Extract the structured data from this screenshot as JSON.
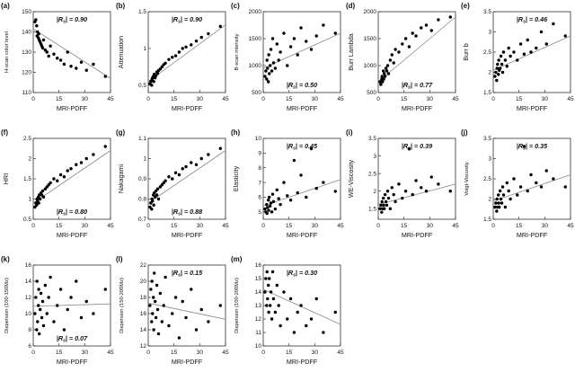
{
  "figure": {
    "xlabel_shared": "MRI-PDFF",
    "point_color": "#000000",
    "trend_color": "#8a8a8a",
    "axes_color": "#333333"
  },
  "chart_data": [
    {
      "id": "a",
      "panel_label": "(a)",
      "type": "scatter",
      "xlabel": "MRI-PDFF",
      "ylabel": "H-scan color level",
      "r_text": "|Rs| = 0.90",
      "r_value": "0.90",
      "r_pos": "top",
      "xlim": [
        0,
        45
      ],
      "xticks": [
        0,
        15,
        30,
        45
      ],
      "ylim": [
        110,
        150
      ],
      "yticks": [
        110,
        120,
        130,
        140,
        150
      ],
      "x": [
        1,
        1.5,
        2,
        2.2,
        2.5,
        3,
        3.2,
        3.5,
        4,
        4.5,
        5,
        5.5,
        6,
        7,
        8,
        9,
        10,
        12,
        14,
        16,
        18,
        20,
        22,
        25,
        28,
        31,
        35,
        42
      ],
      "y": [
        145,
        146,
        143,
        138,
        140,
        137,
        139,
        136,
        135,
        134,
        133,
        132,
        136,
        131,
        130,
        128,
        133,
        129,
        127,
        126,
        124,
        130,
        123,
        122,
        125,
        121,
        124,
        118
      ],
      "trend": {
        "x1": 0,
        "y1": 141.5,
        "x2": 45,
        "y2": 117
      }
    },
    {
      "id": "b",
      "panel_label": "(b)",
      "type": "scatter",
      "xlabel": "MRI-PDFF",
      "ylabel": "Attenuation",
      "r_text": "|Rs| = 0.90",
      "r_value": "0.90",
      "r_pos": "top",
      "xlim": [
        0,
        45
      ],
      "xticks": [
        0,
        15,
        30,
        45
      ],
      "ylim": [
        0.4,
        1.5
      ],
      "yticks": [
        0.5,
        1,
        1.5
      ],
      "x": [
        1,
        1.5,
        2,
        2.2,
        2.5,
        3,
        3.2,
        3.5,
        4,
        4.5,
        5,
        5.5,
        6,
        7,
        8,
        9,
        10,
        12,
        14,
        16,
        18,
        20,
        22,
        25,
        28,
        31,
        35,
        42
      ],
      "y": [
        0.52,
        0.55,
        0.5,
        0.58,
        0.6,
        0.62,
        0.55,
        0.65,
        0.6,
        0.63,
        0.68,
        0.66,
        0.7,
        0.72,
        0.75,
        0.78,
        0.8,
        0.85,
        0.88,
        0.9,
        0.95,
        1.0,
        1.02,
        1.05,
        1.1,
        1.15,
        1.2,
        1.3
      ],
      "trend": {
        "x1": 0,
        "y1": 0.55,
        "x2": 45,
        "y2": 1.32
      }
    },
    {
      "id": "c",
      "panel_label": "(c)",
      "type": "scatter",
      "xlabel": "MRI-PDFF",
      "ylabel": "B-scan intensity",
      "r_text": "|Rs| = 0.50",
      "r_value": "0.50",
      "r_pos": "bottom",
      "xlim": [
        0,
        45
      ],
      "xticks": [
        0,
        15,
        30,
        45
      ],
      "ylim": [
        500,
        2000
      ],
      "yticks": [
        500,
        1000,
        1500,
        2000
      ],
      "x": [
        1,
        1.5,
        2,
        2.2,
        2.5,
        3,
        3.2,
        3.5,
        4,
        4.5,
        5,
        5.5,
        6,
        7,
        8,
        9,
        10,
        12,
        14,
        16,
        18,
        20,
        22,
        25,
        28,
        31,
        35,
        42
      ],
      "y": [
        800,
        900,
        750,
        1100,
        950,
        700,
        1200,
        850,
        1000,
        1300,
        900,
        1500,
        1050,
        950,
        1400,
        1100,
        1250,
        1600,
        1000,
        1350,
        1500,
        1200,
        1700,
        1450,
        1300,
        1550,
        1750,
        1600
      ],
      "trend": {
        "x1": 0,
        "y1": 950,
        "x2": 45,
        "y2": 1600
      }
    },
    {
      "id": "d",
      "panel_label": "(d)",
      "type": "scatter",
      "xlabel": "MRI-PDFF",
      "ylabel": "Burr Lambda",
      "r_text": "|Rs| = 0.77",
      "r_value": "0.77",
      "r_pos": "bottom",
      "xlim": [
        0,
        45
      ],
      "xticks": [
        0,
        15,
        30,
        45
      ],
      "ylim": [
        500,
        2000
      ],
      "yticks": [
        500,
        1000,
        1500,
        2000
      ],
      "x": [
        1,
        1.5,
        2,
        2.2,
        2.5,
        3,
        3.2,
        3.5,
        4,
        4.5,
        5,
        5.5,
        6,
        7,
        8,
        9,
        10,
        12,
        14,
        16,
        18,
        20,
        22,
        25,
        28,
        31,
        35,
        42
      ],
      "y": [
        700,
        650,
        750,
        800,
        700,
        900,
        750,
        850,
        800,
        950,
        900,
        1000,
        850,
        1100,
        1200,
        1050,
        1300,
        1250,
        1400,
        1500,
        1350,
        1600,
        1550,
        1700,
        1750,
        1650,
        1850,
        1900
      ],
      "trend": {
        "x1": 0,
        "y1": 700,
        "x2": 45,
        "y2": 1900
      }
    },
    {
      "id": "e",
      "panel_label": "(e)",
      "type": "scatter",
      "xlabel": "MRI-PDFF",
      "ylabel": "Burr b",
      "r_text": "|Rs| = 0.46",
      "r_value": "0.46",
      "r_pos": "top",
      "xlim": [
        0,
        45
      ],
      "xticks": [
        0,
        15,
        30,
        45
      ],
      "ylim": [
        1.5,
        3.5
      ],
      "yticks": [
        1.5,
        2,
        2.5,
        3,
        3.5
      ],
      "x": [
        1,
        1.5,
        2,
        2.2,
        2.5,
        3,
        3.2,
        3.5,
        4,
        4.5,
        5,
        5.5,
        6,
        7,
        8,
        9,
        10,
        12,
        14,
        16,
        18,
        20,
        22,
        25,
        28,
        31,
        35,
        42
      ],
      "y": [
        1.9,
        2.0,
        1.8,
        2.1,
        2.2,
        1.95,
        2.3,
        2.05,
        2.1,
        2.4,
        2.2,
        2.0,
        2.5,
        2.3,
        2.15,
        2.6,
        2.4,
        2.5,
        2.3,
        2.7,
        2.45,
        2.8,
        2.5,
        2.6,
        3.0,
        2.7,
        3.2,
        2.9
      ],
      "trend": {
        "x1": 0,
        "y1": 2.05,
        "x2": 45,
        "y2": 2.9
      }
    },
    {
      "id": "f",
      "panel_label": "(f)",
      "type": "scatter",
      "xlabel": "MRI-PDFF",
      "ylabel": "HRI",
      "r_text": "|Rs| = 0.80",
      "r_value": "0.80",
      "r_pos": "bottom",
      "xlim": [
        0,
        45
      ],
      "xticks": [
        0,
        15,
        30,
        45
      ],
      "ylim": [
        0.5,
        2.5
      ],
      "yticks": [
        0.5,
        1,
        1.5,
        2,
        2.5
      ],
      "x": [
        1,
        1.5,
        2,
        2.2,
        2.5,
        3,
        3.2,
        3.5,
        4,
        4.5,
        5,
        5.5,
        6,
        7,
        8,
        9,
        10,
        12,
        14,
        16,
        18,
        20,
        22,
        25,
        28,
        31,
        35,
        42
      ],
      "y": [
        0.8,
        0.9,
        0.85,
        1.0,
        0.95,
        1.05,
        0.9,
        1.1,
        1.0,
        1.15,
        1.1,
        1.2,
        1.05,
        1.25,
        1.3,
        1.35,
        1.4,
        1.5,
        1.45,
        1.6,
        1.55,
        1.7,
        1.75,
        1.85,
        1.9,
        2.0,
        2.1,
        2.3
      ],
      "trend": {
        "x1": 0,
        "y1": 0.9,
        "x2": 45,
        "y2": 2.2
      }
    },
    {
      "id": "g",
      "panel_label": "(g)",
      "type": "scatter",
      "xlabel": "MRI-PDFF",
      "ylabel": "Nakagami",
      "r_text": "|Rs| = 0.88",
      "r_value": "0.88",
      "r_pos": "bottom",
      "xlim": [
        0,
        45
      ],
      "xticks": [
        0,
        15,
        30,
        45
      ],
      "ylim": [
        0.7,
        1.1
      ],
      "yticks": [
        0.7,
        0.8,
        0.9,
        1,
        1.1
      ],
      "x": [
        1,
        1.5,
        2,
        2.2,
        2.5,
        3,
        3.2,
        3.5,
        4,
        4.5,
        5,
        5.5,
        6,
        7,
        8,
        9,
        10,
        12,
        14,
        16,
        18,
        20,
        22,
        25,
        28,
        31,
        35,
        42
      ],
      "y": [
        0.76,
        0.78,
        0.75,
        0.8,
        0.79,
        0.82,
        0.77,
        0.83,
        0.81,
        0.84,
        0.82,
        0.85,
        0.8,
        0.86,
        0.87,
        0.88,
        0.89,
        0.91,
        0.9,
        0.93,
        0.92,
        0.95,
        0.96,
        0.98,
        0.97,
        1.0,
        1.02,
        1.05
      ],
      "trend": {
        "x1": 0,
        "y1": 0.78,
        "x2": 45,
        "y2": 1.04
      }
    },
    {
      "id": "h",
      "panel_label": "(h)",
      "type": "scatter",
      "xlabel": "MRI-PDFF",
      "ylabel": "Elasticity",
      "r_text": "|Rs| = 0.45",
      "r_value": "0.45",
      "r_pos": "top",
      "xlim": [
        0,
        45
      ],
      "xticks": [
        0,
        15,
        30,
        45
      ],
      "ylim": [
        4.5,
        10
      ],
      "yticks": [
        5,
        6,
        7,
        8,
        9,
        10
      ],
      "x": [
        1,
        1.5,
        2,
        2.2,
        2.5,
        3,
        3.2,
        3.5,
        4,
        4.5,
        5,
        5.5,
        6,
        7,
        8,
        9,
        10,
        12,
        14,
        16,
        18,
        20,
        22,
        25,
        28,
        31,
        35,
        42
      ],
      "y": [
        5.2,
        5.0,
        5.5,
        4.9,
        5.3,
        5.8,
        5.1,
        6.0,
        5.4,
        5.6,
        5.0,
        6.2,
        5.7,
        5.2,
        6.5,
        5.9,
        5.5,
        7.0,
        6.1,
        5.8,
        8.5,
        6.3,
        7.5,
        6.0,
        9.3,
        6.6,
        7.0,
        6.4
      ],
      "trend": {
        "x1": 0,
        "y1": 5.4,
        "x2": 45,
        "y2": 7.2
      }
    },
    {
      "id": "i",
      "panel_label": "(i)",
      "type": "scatter",
      "xlabel": "MRI-PDFF",
      "ylabel": "WE-Viscosity",
      "r_text": "|Rs| = 0.39",
      "r_value": "0.39",
      "r_pos": "top",
      "xlim": [
        0,
        45
      ],
      "xticks": [
        0,
        15,
        30,
        45
      ],
      "ylim": [
        1.2,
        3.5
      ],
      "yticks": [
        1.5,
        2,
        2.5,
        3,
        3.5
      ],
      "x": [
        1,
        1.5,
        2,
        2.2,
        2.5,
        3,
        3.2,
        3.5,
        4,
        4.5,
        5,
        5.5,
        6,
        7,
        8,
        9,
        10,
        12,
        14,
        16,
        18,
        20,
        22,
        25,
        28,
        31,
        35,
        42
      ],
      "y": [
        1.5,
        1.6,
        1.4,
        1.7,
        1.5,
        1.8,
        1.6,
        1.5,
        1.9,
        1.7,
        1.6,
        2.0,
        1.8,
        1.5,
        2.1,
        1.9,
        1.7,
        2.2,
        1.8,
        2.0,
        3.2,
        1.9,
        2.3,
        2.1,
        2.0,
        2.4,
        2.2,
        2.0
      ],
      "trend": {
        "x1": 0,
        "y1": 1.62,
        "x2": 45,
        "y2": 2.2
      }
    },
    {
      "id": "j",
      "panel_label": "(j)",
      "type": "scatter",
      "xlabel": "MRI-PDFF",
      "ylabel": "Voigt-Viscosity",
      "r_text": "|Rs| = 0.35",
      "r_value": "0.35",
      "r_pos": "top",
      "xlim": [
        0,
        45
      ],
      "xticks": [
        0,
        15,
        30,
        45
      ],
      "ylim": [
        1.5,
        3.5
      ],
      "yticks": [
        1.5,
        2,
        2.5,
        3,
        3.5
      ],
      "x": [
        1,
        1.5,
        2,
        2.2,
        2.5,
        3,
        3.2,
        3.5,
        4,
        4.5,
        5,
        5.5,
        6,
        7,
        8,
        9,
        10,
        12,
        14,
        16,
        18,
        20,
        22,
        25,
        28,
        31,
        35,
        42
      ],
      "y": [
        1.8,
        1.9,
        1.7,
        2.0,
        1.8,
        2.1,
        1.9,
        1.8,
        2.2,
        2.0,
        1.9,
        2.3,
        2.1,
        1.8,
        2.4,
        2.2,
        2.0,
        2.5,
        2.1,
        2.3,
        3.3,
        2.2,
        2.6,
        2.4,
        2.3,
        2.7,
        2.5,
        2.3
      ],
      "trend": {
        "x1": 0,
        "y1": 1.95,
        "x2": 45,
        "y2": 2.6
      }
    },
    {
      "id": "k",
      "panel_label": "(k)",
      "type": "scatter",
      "xlabel": "MRI-PDFF",
      "ylabel": "Dispersion (100-150Mz)",
      "r_text": "|Rs| = 0.07",
      "r_value": "0.07",
      "r_pos": "bottom",
      "xlim": [
        0,
        45
      ],
      "xticks": [
        0,
        15,
        30,
        45
      ],
      "ylim": [
        6,
        16
      ],
      "yticks": [
        6,
        8,
        10,
        12,
        14,
        16
      ],
      "x": [
        1,
        1.5,
        2,
        2.2,
        2.5,
        3,
        3.2,
        3.5,
        4,
        4.5,
        5,
        5.5,
        6,
        7,
        8,
        9,
        10,
        12,
        14,
        16,
        18,
        20,
        22,
        25,
        28,
        31,
        35,
        42
      ],
      "y": [
        10,
        12,
        8,
        14,
        9,
        11,
        13,
        7.5,
        10.5,
        12.5,
        9.5,
        11.5,
        8.5,
        13.5,
        10,
        12,
        14.5,
        9,
        11,
        13,
        8,
        10.5,
        12,
        14,
        9.5,
        11.5,
        10,
        13
      ],
      "trend": {
        "x1": 0,
        "y1": 10.9,
        "x2": 45,
        "y2": 11.2
      }
    },
    {
      "id": "l",
      "panel_label": "(l)",
      "type": "scatter",
      "xlabel": "MRI-PDFF",
      "ylabel": "Dispersion (150-200Mz)",
      "r_text": "|Rs| = 0.15",
      "r_value": "0.15",
      "r_pos": "top",
      "xlim": [
        0,
        45
      ],
      "xticks": [
        0,
        15,
        30,
        45
      ],
      "ylim": [
        12,
        22
      ],
      "yticks": [
        12,
        14,
        16,
        18,
        20,
        22
      ],
      "x": [
        1,
        1.5,
        2,
        2.2,
        2.5,
        3,
        3.2,
        3.5,
        4,
        4.5,
        5,
        5.5,
        6,
        7,
        8,
        9,
        10,
        12,
        14,
        16,
        18,
        20,
        22,
        25,
        28,
        31,
        35,
        42
      ],
      "y": [
        17,
        19,
        15,
        20,
        16,
        18,
        14,
        21,
        17.5,
        15.5,
        19.5,
        16.5,
        13.5,
        18.5,
        15,
        17,
        20.5,
        14.5,
        16,
        18,
        13,
        17.5,
        15.5,
        19,
        14,
        16.5,
        15,
        17
      ],
      "trend": {
        "x1": 0,
        "y1": 17.3,
        "x2": 45,
        "y2": 15.3
      }
    },
    {
      "id": "m",
      "panel_label": "(m)",
      "type": "scatter",
      "xlabel": "MRI-PDFF",
      "ylabel": "Dispersion (100-200Mz)",
      "r_text": "|Rs| = 0.30",
      "r_value": "0.30",
      "r_pos": "top",
      "xlim": [
        0,
        45
      ],
      "xticks": [
        0,
        15,
        30,
        45
      ],
      "ylim": [
        10,
        16
      ],
      "yticks": [
        10,
        11,
        12,
        13,
        14,
        15,
        16
      ],
      "x": [
        1,
        1.5,
        2,
        2.2,
        2.5,
        3,
        3.2,
        3.5,
        4,
        4.5,
        5,
        5.5,
        6,
        7,
        8,
        9,
        10,
        12,
        14,
        16,
        18,
        20,
        22,
        25,
        28,
        31,
        35,
        42
      ],
      "y": [
        14,
        15,
        13,
        15.5,
        13.5,
        14.5,
        12.5,
        15,
        13,
        14,
        12,
        15.5,
        13.5,
        12.5,
        14.5,
        13,
        11.5,
        14,
        12,
        13.5,
        11,
        12.5,
        13,
        11.5,
        12,
        13.5,
        11,
        12.5
      ],
      "trend": {
        "x1": 0,
        "y1": 14.2,
        "x2": 45,
        "y2": 11.6
      }
    }
  ]
}
